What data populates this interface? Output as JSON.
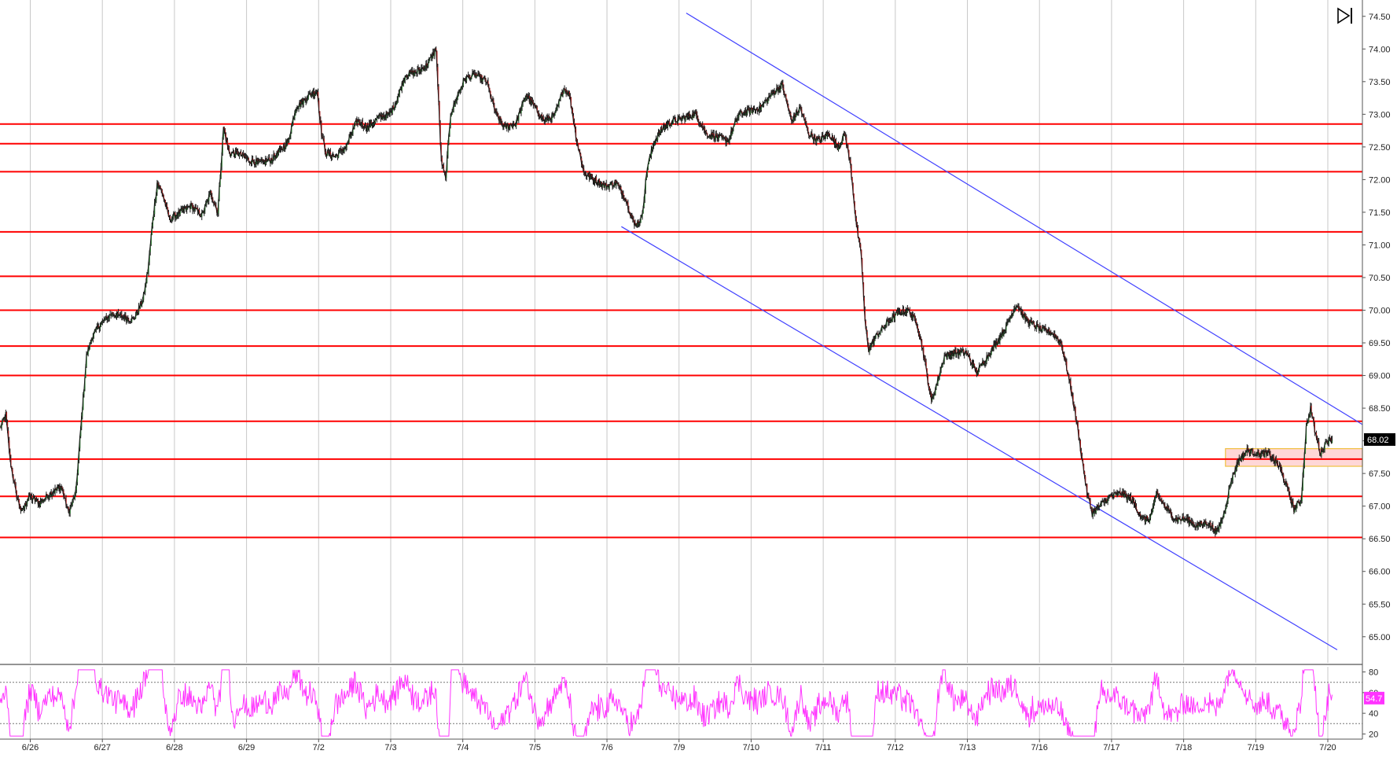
{
  "chart_data": {
    "type": "line",
    "main_panel": {
      "y_axis": {
        "ylim": [
          64.6,
          74.75
        ],
        "ticks": [
          65.0,
          65.5,
          66.0,
          66.5,
          67.0,
          67.5,
          68.0,
          68.5,
          69.0,
          69.5,
          70.0,
          70.5,
          71.0,
          71.5,
          72.0,
          72.5,
          73.0,
          73.5,
          74.0,
          74.5
        ],
        "tick_labels": [
          "65.00",
          "65.50",
          "66.00",
          "66.50",
          "67.00",
          "67.50",
          "68.00",
          "68.50",
          "69.00",
          "69.50",
          "70.00",
          "70.50",
          "71.00",
          "71.50",
          "72.00",
          "72.50",
          "73.00",
          "73.50",
          "74.00",
          "74.50"
        ]
      },
      "x_axis": {
        "xlim": [
          0,
          18.9
        ],
        "date_labels": [
          {
            "x": 0.42,
            "label": "6/26"
          },
          {
            "x": 1.42,
            "label": "6/27"
          },
          {
            "x": 2.42,
            "label": "6/28"
          },
          {
            "x": 3.42,
            "label": "6/29"
          },
          {
            "x": 4.42,
            "label": "7/2"
          },
          {
            "x": 5.42,
            "label": "7/3"
          },
          {
            "x": 6.42,
            "label": "7/4"
          },
          {
            "x": 7.42,
            "label": "7/5"
          },
          {
            "x": 8.42,
            "label": "7/6"
          },
          {
            "x": 9.42,
            "label": "7/9"
          },
          {
            "x": 10.42,
            "label": "7/10"
          },
          {
            "x": 11.42,
            "label": "7/11"
          },
          {
            "x": 12.42,
            "label": "7/12"
          },
          {
            "x": 13.42,
            "label": "7/13"
          },
          {
            "x": 14.42,
            "label": "7/16"
          },
          {
            "x": 15.42,
            "label": "7/17"
          },
          {
            "x": 16.42,
            "label": "7/18"
          },
          {
            "x": 17.42,
            "label": "7/19"
          },
          {
            "x": 18.42,
            "label": "7/20"
          }
        ],
        "gridlines": [
          0.42,
          1.42,
          2.42,
          3.42,
          4.42,
          5.42,
          6.42,
          7.42,
          8.42,
          9.42,
          10.42,
          11.42,
          12.42,
          13.42,
          14.42,
          15.42,
          16.42,
          17.42,
          18.42
        ]
      },
      "series": [
        {
          "price_path": [
            [
              0.0,
              68.2
            ],
            [
              0.08,
              68.4
            ],
            [
              0.14,
              67.7
            ],
            [
              0.22,
              67.2
            ],
            [
              0.3,
              66.9
            ],
            [
              0.4,
              67.15
            ],
            [
              0.55,
              67.05
            ],
            [
              0.7,
              67.2
            ],
            [
              0.85,
              67.3
            ],
            [
              0.95,
              66.9
            ],
            [
              1.05,
              67.2
            ],
            [
              1.12,
              68.2
            ],
            [
              1.2,
              69.3
            ],
            [
              1.28,
              69.6
            ],
            [
              1.4,
              69.8
            ],
            [
              1.55,
              69.95
            ],
            [
              1.7,
              69.9
            ],
            [
              1.85,
              69.85
            ],
            [
              1.98,
              70.15
            ],
            [
              2.05,
              70.6
            ],
            [
              2.12,
              71.4
            ],
            [
              2.18,
              71.95
            ],
            [
              2.25,
              71.8
            ],
            [
              2.35,
              71.4
            ],
            [
              2.5,
              71.5
            ],
            [
              2.65,
              71.6
            ],
            [
              2.8,
              71.45
            ],
            [
              2.92,
              71.8
            ],
            [
              3.02,
              71.5
            ],
            [
              3.1,
              72.8
            ],
            [
              3.18,
              72.4
            ],
            [
              3.3,
              72.4
            ],
            [
              3.45,
              72.3
            ],
            [
              3.6,
              72.25
            ],
            [
              3.75,
              72.3
            ],
            [
              3.9,
              72.45
            ],
            [
              4.0,
              72.6
            ],
            [
              4.1,
              73.1
            ],
            [
              4.2,
              73.2
            ],
            [
              4.3,
              73.3
            ],
            [
              4.4,
              73.35
            ],
            [
              4.46,
              72.7
            ],
            [
              4.52,
              72.4
            ],
            [
              4.65,
              72.35
            ],
            [
              4.8,
              72.5
            ],
            [
              4.95,
              72.9
            ],
            [
              5.1,
              72.8
            ],
            [
              5.25,
              72.95
            ],
            [
              5.4,
              73.0
            ],
            [
              5.5,
              73.2
            ],
            [
              5.62,
              73.6
            ],
            [
              5.78,
              73.65
            ],
            [
              5.92,
              73.75
            ],
            [
              6.05,
              74.0
            ],
            [
              6.12,
              72.3
            ],
            [
              6.18,
              72.0
            ],
            [
              6.25,
              73.0
            ],
            [
              6.35,
              73.3
            ],
            [
              6.45,
              73.55
            ],
            [
              6.6,
              73.6
            ],
            [
              6.75,
              73.5
            ],
            [
              6.88,
              73.0
            ],
            [
              7.0,
              72.8
            ],
            [
              7.15,
              72.85
            ],
            [
              7.3,
              73.3
            ],
            [
              7.42,
              73.1
            ],
            [
              7.55,
              72.9
            ],
            [
              7.7,
              73.0
            ],
            [
              7.82,
              73.4
            ],
            [
              7.9,
              73.3
            ],
            [
              8.0,
              72.6
            ],
            [
              8.1,
              72.1
            ],
            [
              8.25,
              72.0
            ],
            [
              8.4,
              71.9
            ],
            [
              8.55,
              71.95
            ],
            [
              8.68,
              71.7
            ],
            [
              8.8,
              71.3
            ],
            [
              8.9,
              71.4
            ],
            [
              8.98,
              72.2
            ],
            [
              9.08,
              72.6
            ],
            [
              9.2,
              72.8
            ],
            [
              9.35,
              72.9
            ],
            [
              9.5,
              72.95
            ],
            [
              9.65,
              73.0
            ],
            [
              9.8,
              72.7
            ],
            [
              9.95,
              72.65
            ],
            [
              10.1,
              72.6
            ],
            [
              10.25,
              73.0
            ],
            [
              10.4,
              73.05
            ],
            [
              10.55,
              73.1
            ],
            [
              10.7,
              73.3
            ],
            [
              10.85,
              73.45
            ],
            [
              10.98,
              72.9
            ],
            [
              11.1,
              73.1
            ],
            [
              11.22,
              72.7
            ],
            [
              11.35,
              72.6
            ],
            [
              11.5,
              72.7
            ],
            [
              11.62,
              72.5
            ],
            [
              11.72,
              72.7
            ],
            [
              11.8,
              72.2
            ],
            [
              11.88,
              71.3
            ],
            [
              11.95,
              70.8
            ],
            [
              12.0,
              69.8
            ],
            [
              12.05,
              69.4
            ],
            [
              12.15,
              69.6
            ],
            [
              12.3,
              69.8
            ],
            [
              12.45,
              69.95
            ],
            [
              12.6,
              70.0
            ],
            [
              12.72,
              69.8
            ],
            [
              12.8,
              69.4
            ],
            [
              12.86,
              69.0
            ],
            [
              12.92,
              68.6
            ],
            [
              13.0,
              68.9
            ],
            [
              13.1,
              69.3
            ],
            [
              13.25,
              69.35
            ],
            [
              13.4,
              69.35
            ],
            [
              13.55,
              69.05
            ],
            [
              13.7,
              69.3
            ],
            [
              13.85,
              69.55
            ],
            [
              13.98,
              69.8
            ],
            [
              14.1,
              70.1
            ],
            [
              14.2,
              69.9
            ],
            [
              14.3,
              69.8
            ],
            [
              14.45,
              69.7
            ],
            [
              14.6,
              69.65
            ],
            [
              14.72,
              69.5
            ],
            [
              14.82,
              69.0
            ],
            [
              14.92,
              68.4
            ],
            [
              15.0,
              67.8
            ],
            [
              15.08,
              67.2
            ],
            [
              15.15,
              66.9
            ],
            [
              15.25,
              67.0
            ],
            [
              15.4,
              67.15
            ],
            [
              15.55,
              67.2
            ],
            [
              15.7,
              67.1
            ],
            [
              15.85,
              66.8
            ],
            [
              15.95,
              66.8
            ],
            [
              16.05,
              67.2
            ],
            [
              16.15,
              67.0
            ],
            [
              16.3,
              66.8
            ],
            [
              16.45,
              66.8
            ],
            [
              16.6,
              66.7
            ],
            [
              16.75,
              66.75
            ],
            [
              16.88,
              66.6
            ],
            [
              16.98,
              66.9
            ],
            [
              17.08,
              67.4
            ],
            [
              17.18,
              67.7
            ],
            [
              17.3,
              67.85
            ],
            [
              17.45,
              67.8
            ],
            [
              17.6,
              67.8
            ],
            [
              17.75,
              67.6
            ],
            [
              17.85,
              67.3
            ],
            [
              17.95,
              66.95
            ],
            [
              18.05,
              67.1
            ],
            [
              18.12,
              68.2
            ],
            [
              18.18,
              68.5
            ],
            [
              18.25,
              68.1
            ],
            [
              18.32,
              67.8
            ],
            [
              18.4,
              68.0
            ],
            [
              18.48,
              68.02
            ]
          ]
        }
      ],
      "horizontal_levels": [
        72.85,
        72.55,
        72.12,
        71.2,
        70.52,
        70.0,
        69.45,
        69.0,
        68.3,
        67.72,
        67.15,
        66.52
      ],
      "channel_lines": [
        {
          "from": [
            9.52,
            74.55
          ],
          "to": [
            18.9,
            68.25
          ]
        },
        {
          "from": [
            8.62,
            71.28
          ],
          "to": [
            18.55,
            64.8
          ]
        }
      ],
      "highlight_zone": {
        "x_from": 17.0,
        "x_to": 18.9,
        "y_low": 67.61,
        "y_high": 67.88
      },
      "last_price_label": "68.02"
    },
    "rsi_panel": {
      "ylim": [
        15,
        85
      ],
      "ticks": [
        20,
        40,
        60,
        80
      ],
      "tick_labels": [
        "20",
        "40",
        "60",
        "80"
      ],
      "reference_levels": [
        70,
        30
      ],
      "current_value_label": "54.7"
    }
  },
  "colors": {
    "background": "#ffffff",
    "grid": "#c8c8c8",
    "level_lines": "#ff0000",
    "channel_lines": "#4040ff",
    "price_line": "#1a1a1a",
    "up_accent": "#2e7d32",
    "down_accent": "#b71c1c",
    "rsi_line": "#ff33ff",
    "rsi_tag": "#ff33ff",
    "price_tag": "#000000",
    "zone_fill": "#ffd7d7",
    "zone_border": "#f0c040"
  },
  "icons": {
    "corner_icon": "skip-to-end-icon"
  }
}
